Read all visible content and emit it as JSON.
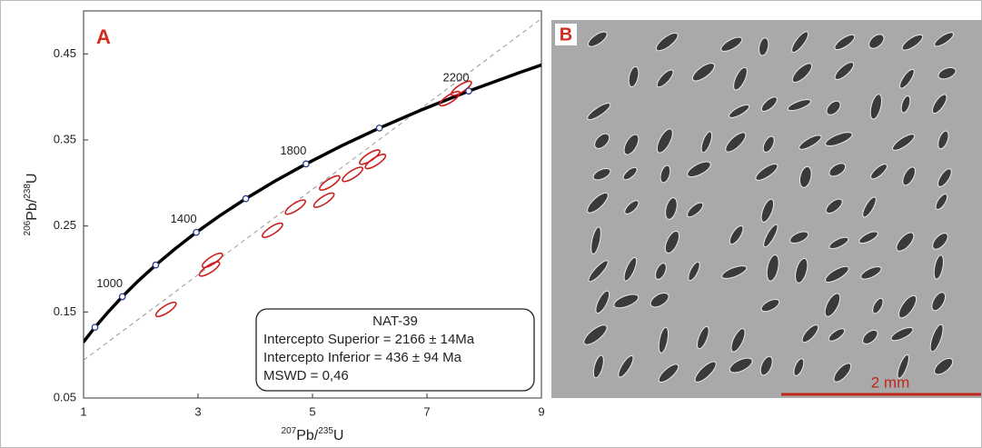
{
  "chart_data": {
    "type": "concordia",
    "panel_label": "A",
    "xlabel": [
      "207",
      "Pb/",
      "235",
      "U"
    ],
    "ylabel": [
      "206",
      "Pb/",
      "238",
      "U"
    ],
    "xlim": [
      1,
      9
    ],
    "xticks": [
      1,
      3,
      5,
      7,
      9
    ],
    "ylim": [
      0.05,
      0.5
    ],
    "yticks": [
      0.05,
      0.15,
      0.25,
      0.35,
      0.45
    ],
    "concordia": {
      "color": "#000000",
      "x": [
        0.9925,
        1.1987,
        1.4264,
        1.6774,
        1.9545,
        2.2602,
        2.5975,
        2.9698,
        3.3811,
        3.8343,
        4.3346,
        4.8867,
        5.4959,
        6.1684,
        6.9106,
        7.7296,
        8.6334,
        9.0205
      ],
      "values": [
        0.1147,
        0.1322,
        0.1498,
        0.1678,
        0.1861,
        0.2046,
        0.2234,
        0.2426,
        0.262,
        0.2817,
        0.3018,
        0.3221,
        0.3428,
        0.3638,
        0.3851,
        0.4068,
        0.4287,
        0.4376
      ]
    },
    "markers": {
      "x": [
        1.1987,
        1.6774,
        2.2602,
        2.9698,
        3.8343,
        4.8867,
        6.1684,
        7.7296
      ],
      "values": [
        0.1322,
        0.1678,
        0.2046,
        0.2426,
        0.2817,
        0.3221,
        0.3638,
        0.4068
      ]
    },
    "age_labels": [
      {
        "label": "1000",
        "x": 1.6774,
        "y": 0.1678
      },
      {
        "label": "1400",
        "x": 2.9698,
        "y": 0.2426
      },
      {
        "label": "1800",
        "x": 4.8867,
        "y": 0.3221
      },
      {
        "label": "2200",
        "x": 7.7296,
        "y": 0.4068
      }
    ],
    "discordia": {
      "color": "#999999",
      "x": [
        1,
        9
      ],
      "values": [
        0.094,
        0.491
      ]
    },
    "ellipses": {
      "color": "#cc1f1f",
      "x": [
        2.44,
        3.2,
        3.25,
        4.3,
        4.7,
        5.2,
        5.3,
        5.7,
        6.0,
        6.1,
        7.4,
        7.6
      ],
      "values": [
        0.153,
        0.2,
        0.21,
        0.245,
        0.272,
        0.28,
        0.3,
        0.31,
        0.33,
        0.325,
        0.398,
        0.41
      ]
    },
    "info": [
      "NAT-39",
      "Intercepto Superior = 2166 ± 14Ma",
      "Intercepto Inferior = 436 ± 94 Ma",
      "MSWD = 0,46"
    ]
  },
  "image_panel": {
    "label": "B",
    "scale_bar": "2 mm"
  }
}
